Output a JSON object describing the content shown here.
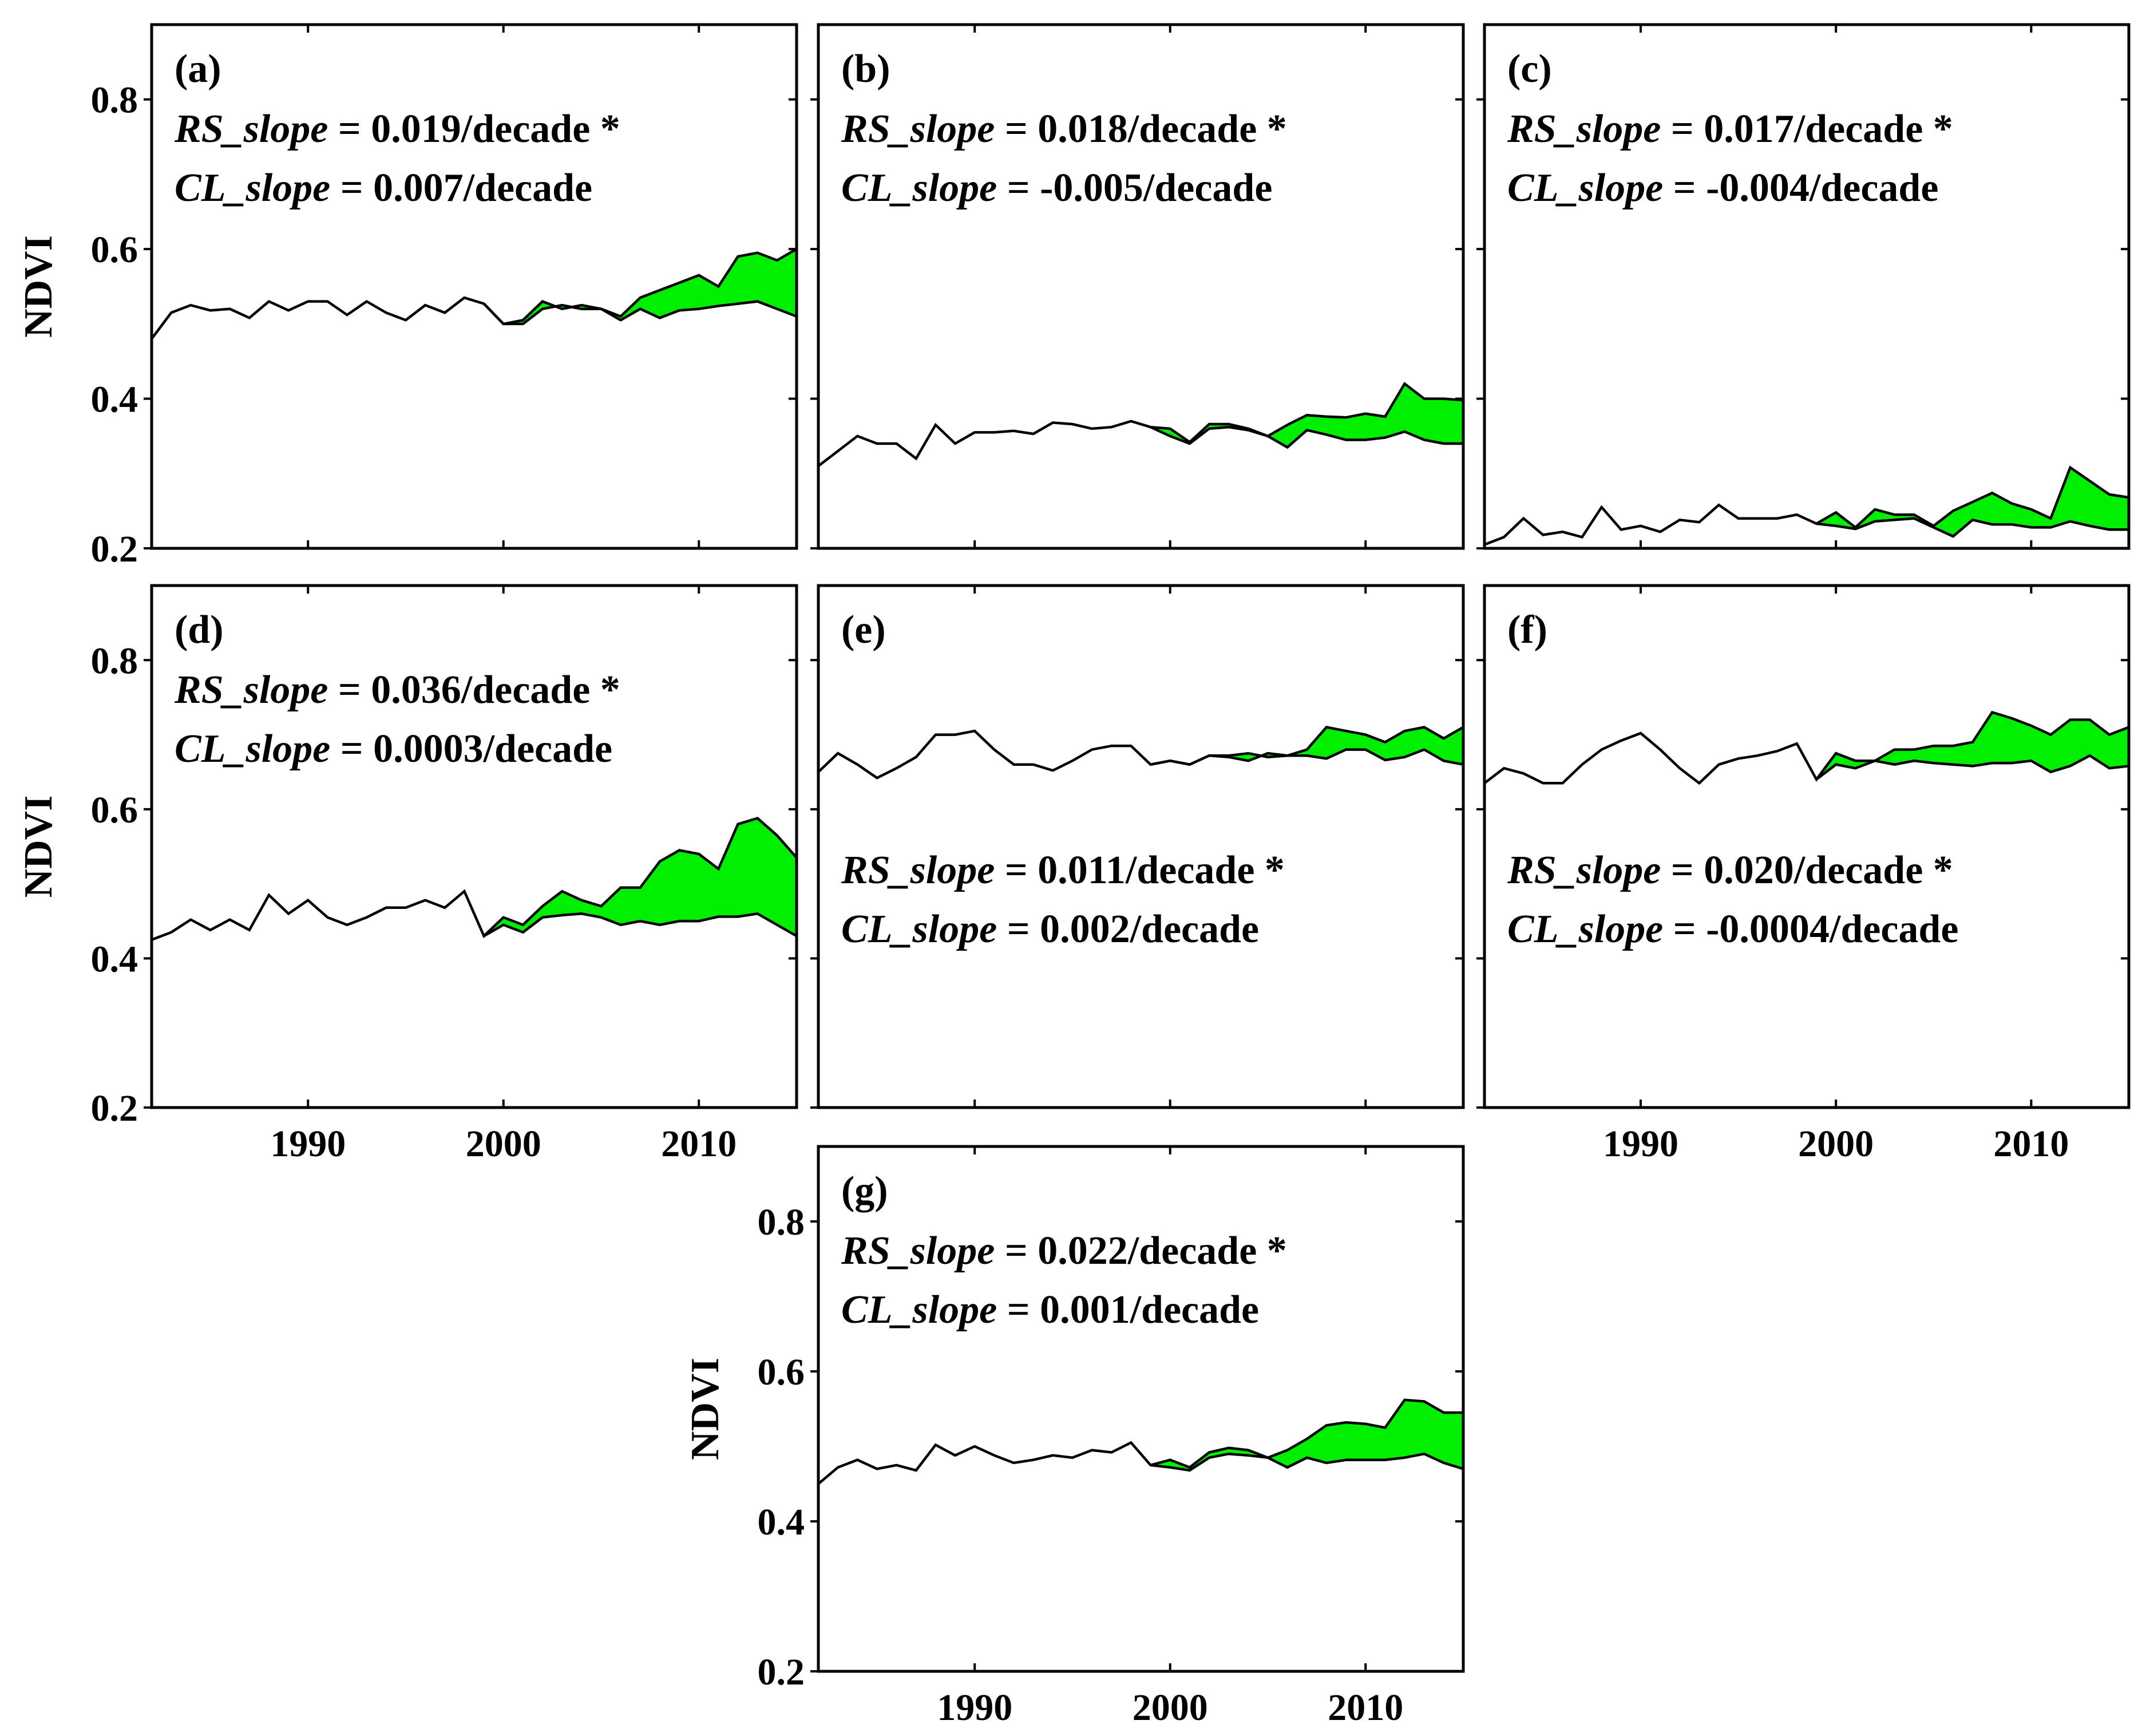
{
  "figure": {
    "accent_fill": "#00ee00",
    "line_color": "#000000"
  },
  "chart_data": [
    {
      "id": "a",
      "type": "line",
      "label": "(a)",
      "rs_label": "RS_slope",
      "rs_value": "= 0.019/decade *",
      "cl_label": "CL_slope",
      "cl_value": "= 0.007/decade",
      "ylabel": "NDVI",
      "xlabel": "",
      "xlim": [
        1982,
        2015
      ],
      "ylim": [
        0.2,
        0.9
      ],
      "yticks": [
        0.2,
        0.4,
        0.6,
        0.8
      ],
      "ytick_labels": [
        "0.2",
        "0.4",
        "0.6",
        "0.8"
      ],
      "xticks": [
        1990,
        2000,
        2010
      ],
      "xtick_labels": [],
      "series": [
        {
          "name": "RS",
          "x": [
            1982,
            1983,
            1984,
            1985,
            1986,
            1987,
            1988,
            1989,
            1990,
            1991,
            1992,
            1993,
            1994,
            1995,
            1996,
            1997,
            1998,
            1999,
            2000,
            2001,
            2002,
            2003,
            2004,
            2005,
            2006,
            2007,
            2008,
            2009,
            2010,
            2011,
            2012,
            2013,
            2014,
            2015
          ],
          "values": [
            0.48,
            0.515,
            0.525,
            0.518,
            0.52,
            0.508,
            0.53,
            0.518,
            0.53,
            0.53,
            0.512,
            0.53,
            0.515,
            0.505,
            0.525,
            0.515,
            0.535,
            0.527,
            0.5,
            0.505,
            0.53,
            0.52,
            0.525,
            0.52,
            0.51,
            0.535,
            0.545,
            0.555,
            0.565,
            0.55,
            0.59,
            0.595,
            0.585,
            0.6
          ]
        },
        {
          "name": "CL",
          "x": [
            1999,
            2000,
            2001,
            2002,
            2003,
            2004,
            2005,
            2006,
            2007,
            2008,
            2009,
            2010,
            2011,
            2012,
            2013,
            2014,
            2015
          ],
          "values": [
            0.527,
            0.5,
            0.5,
            0.52,
            0.525,
            0.52,
            0.52,
            0.505,
            0.52,
            0.508,
            0.518,
            0.52,
            0.524,
            0.527,
            0.53,
            0.52,
            0.51
          ]
        }
      ]
    },
    {
      "id": "b",
      "type": "line",
      "label": "(b)",
      "rs_label": "RS_slope",
      "rs_value": "= 0.018/decade *",
      "cl_label": "CL_slope",
      "cl_value": "= -0.005/decade",
      "ylabel": "",
      "xlabel": "",
      "xlim": [
        1982,
        2015
      ],
      "ylim": [
        0.2,
        0.9
      ],
      "yticks": [
        0.2,
        0.4,
        0.6,
        0.8
      ],
      "ytick_labels": [],
      "xticks": [
        1990,
        2000,
        2010
      ],
      "xtick_labels": [],
      "series": [
        {
          "name": "RS",
          "x": [
            1982,
            1983,
            1984,
            1985,
            1986,
            1987,
            1988,
            1989,
            1990,
            1991,
            1992,
            1993,
            1994,
            1995,
            1996,
            1997,
            1998,
            1999,
            2000,
            2001,
            2002,
            2003,
            2004,
            2005,
            2006,
            2007,
            2008,
            2009,
            2010,
            2011,
            2012,
            2013,
            2014,
            2015
          ],
          "values": [
            0.31,
            0.33,
            0.35,
            0.34,
            0.34,
            0.32,
            0.365,
            0.34,
            0.355,
            0.355,
            0.357,
            0.353,
            0.368,
            0.366,
            0.36,
            0.362,
            0.37,
            0.362,
            0.36,
            0.342,
            0.366,
            0.366,
            0.36,
            0.35,
            0.365,
            0.378,
            0.376,
            0.375,
            0.38,
            0.376,
            0.42,
            0.4,
            0.4,
            0.398
          ]
        },
        {
          "name": "CL",
          "x": [
            1999,
            2000,
            2001,
            2002,
            2003,
            2004,
            2005,
            2006,
            2007,
            2008,
            2009,
            2010,
            2011,
            2012,
            2013,
            2014,
            2015
          ],
          "values": [
            0.362,
            0.35,
            0.34,
            0.36,
            0.362,
            0.358,
            0.35,
            0.335,
            0.358,
            0.352,
            0.345,
            0.345,
            0.348,
            0.356,
            0.345,
            0.34,
            0.34
          ]
        }
      ]
    },
    {
      "id": "c",
      "type": "line",
      "label": "(c)",
      "rs_label": "RS_slope",
      "rs_value": "= 0.017/decade *",
      "cl_label": "CL_slope",
      "cl_value": "= -0.004/decade",
      "ylabel": "",
      "xlabel": "",
      "xlim": [
        1982,
        2015
      ],
      "ylim": [
        0.2,
        0.9
      ],
      "yticks": [
        0.2,
        0.4,
        0.6,
        0.8
      ],
      "ytick_labels": [],
      "xticks": [
        1990,
        2000,
        2010
      ],
      "xtick_labels": [],
      "series": [
        {
          "name": "RS",
          "x": [
            1982,
            1983,
            1984,
            1985,
            1986,
            1987,
            1988,
            1989,
            1990,
            1991,
            1992,
            1993,
            1994,
            1995,
            1996,
            1997,
            1998,
            1999,
            2000,
            2001,
            2002,
            2003,
            2004,
            2005,
            2006,
            2007,
            2008,
            2009,
            2010,
            2011,
            2012,
            2013,
            2014,
            2015
          ],
          "values": [
            0.205,
            0.215,
            0.24,
            0.218,
            0.222,
            0.215,
            0.255,
            0.225,
            0.23,
            0.222,
            0.238,
            0.235,
            0.258,
            0.24,
            0.24,
            0.24,
            0.245,
            0.233,
            0.248,
            0.228,
            0.252,
            0.245,
            0.245,
            0.23,
            0.25,
            0.262,
            0.274,
            0.26,
            0.252,
            0.24,
            0.308,
            0.29,
            0.272,
            0.268
          ]
        },
        {
          "name": "CL",
          "x": [
            1999,
            2000,
            2001,
            2002,
            2003,
            2004,
            2005,
            2006,
            2007,
            2008,
            2009,
            2010,
            2011,
            2012,
            2013,
            2014,
            2015
          ],
          "values": [
            0.233,
            0.23,
            0.226,
            0.236,
            0.238,
            0.24,
            0.228,
            0.216,
            0.238,
            0.232,
            0.232,
            0.228,
            0.228,
            0.236,
            0.23,
            0.225,
            0.225
          ]
        }
      ]
    },
    {
      "id": "d",
      "type": "line",
      "label": "(d)",
      "rs_label": "RS_slope",
      "rs_value": "= 0.036/decade *",
      "cl_label": "CL_slope",
      "cl_value": "= 0.0003/decade",
      "ylabel": "NDVI",
      "xlabel": "",
      "xlim": [
        1982,
        2015
      ],
      "ylim": [
        0.2,
        0.9
      ],
      "yticks": [
        0.2,
        0.4,
        0.6,
        0.8
      ],
      "ytick_labels": [
        "0.2",
        "0.4",
        "0.6",
        "0.8"
      ],
      "xticks": [
        1990,
        2000,
        2010
      ],
      "xtick_labels": [
        "1990",
        "2000",
        "2010"
      ],
      "series": [
        {
          "name": "RS",
          "x": [
            1982,
            1983,
            1984,
            1985,
            1986,
            1987,
            1988,
            1989,
            1990,
            1991,
            1992,
            1993,
            1994,
            1995,
            1996,
            1997,
            1998,
            1999,
            2000,
            2001,
            2002,
            2003,
            2004,
            2005,
            2006,
            2007,
            2008,
            2009,
            2010,
            2011,
            2012,
            2013,
            2014,
            2015
          ],
          "values": [
            0.425,
            0.435,
            0.452,
            0.438,
            0.452,
            0.438,
            0.485,
            0.46,
            0.478,
            0.455,
            0.445,
            0.455,
            0.468,
            0.468,
            0.478,
            0.468,
            0.49,
            0.43,
            0.455,
            0.445,
            0.47,
            0.49,
            0.478,
            0.47,
            0.495,
            0.495,
            0.53,
            0.545,
            0.54,
            0.52,
            0.58,
            0.588,
            0.565,
            0.535
          ]
        },
        {
          "name": "CL",
          "x": [
            1999,
            2000,
            2001,
            2002,
            2003,
            2004,
            2005,
            2006,
            2007,
            2008,
            2009,
            2010,
            2011,
            2012,
            2013,
            2014,
            2015
          ],
          "values": [
            0.43,
            0.445,
            0.435,
            0.455,
            0.458,
            0.46,
            0.455,
            0.445,
            0.45,
            0.445,
            0.45,
            0.45,
            0.456,
            0.456,
            0.46,
            0.445,
            0.43
          ]
        }
      ]
    },
    {
      "id": "e",
      "type": "line",
      "label": "(e)",
      "rs_label": "RS_slope",
      "rs_value": "= 0.011/decade *",
      "cl_label": "CL_slope",
      "cl_value": "= 0.002/decade",
      "ylabel": "",
      "xlabel": "",
      "xlim": [
        1982,
        2015
      ],
      "ylim": [
        0.2,
        0.9
      ],
      "yticks": [
        0.2,
        0.4,
        0.6,
        0.8
      ],
      "ytick_labels": [],
      "xticks": [
        1990,
        2000,
        2010
      ],
      "xtick_labels": [],
      "series": [
        {
          "name": "RS",
          "x": [
            1982,
            1983,
            1984,
            1985,
            1986,
            1987,
            1988,
            1989,
            1990,
            1991,
            1992,
            1993,
            1994,
            1995,
            1996,
            1997,
            1998,
            1999,
            2000,
            2001,
            2002,
            2003,
            2004,
            2005,
            2006,
            2007,
            2008,
            2009,
            2010,
            2011,
            2012,
            2013,
            2014,
            2015
          ],
          "values": [
            0.65,
            0.675,
            0.66,
            0.642,
            0.655,
            0.67,
            0.7,
            0.7,
            0.705,
            0.68,
            0.66,
            0.66,
            0.652,
            0.665,
            0.68,
            0.685,
            0.685,
            0.66,
            0.665,
            0.66,
            0.672,
            0.672,
            0.675,
            0.67,
            0.672,
            0.68,
            0.71,
            0.705,
            0.7,
            0.69,
            0.705,
            0.71,
            0.695,
            0.71
          ]
        },
        {
          "name": "CL",
          "x": [
            1999,
            2000,
            2001,
            2002,
            2003,
            2004,
            2005,
            2006,
            2007,
            2008,
            2009,
            2010,
            2011,
            2012,
            2013,
            2014,
            2015
          ],
          "values": [
            0.66,
            0.665,
            0.66,
            0.672,
            0.67,
            0.665,
            0.675,
            0.672,
            0.672,
            0.668,
            0.68,
            0.68,
            0.666,
            0.67,
            0.68,
            0.665,
            0.66
          ]
        }
      ]
    },
    {
      "id": "f",
      "type": "line",
      "label": "(f)",
      "rs_label": "RS_slope",
      "rs_value": "= 0.020/decade *",
      "cl_label": "CL_slope",
      "cl_value": "= -0.0004/decade",
      "ylabel": "",
      "xlabel": "",
      "xlim": [
        1982,
        2015
      ],
      "ylim": [
        0.2,
        0.9
      ],
      "yticks": [
        0.2,
        0.4,
        0.6,
        0.8
      ],
      "ytick_labels": [],
      "xticks": [
        1990,
        2000,
        2010
      ],
      "xtick_labels": [
        "1990",
        "2000",
        "2010"
      ],
      "series": [
        {
          "name": "RS",
          "x": [
            1982,
            1983,
            1984,
            1985,
            1986,
            1987,
            1988,
            1989,
            1990,
            1991,
            1992,
            1993,
            1994,
            1995,
            1996,
            1997,
            1998,
            1999,
            2000,
            2001,
            2002,
            2003,
            2004,
            2005,
            2006,
            2007,
            2008,
            2009,
            2010,
            2011,
            2012,
            2013,
            2014,
            2015
          ],
          "values": [
            0.635,
            0.655,
            0.648,
            0.635,
            0.635,
            0.66,
            0.68,
            0.692,
            0.702,
            0.68,
            0.655,
            0.635,
            0.66,
            0.668,
            0.672,
            0.678,
            0.688,
            0.64,
            0.675,
            0.665,
            0.665,
            0.68,
            0.68,
            0.685,
            0.685,
            0.69,
            0.73,
            0.722,
            0.712,
            0.7,
            0.72,
            0.72,
            0.7,
            0.71
          ]
        },
        {
          "name": "CL",
          "x": [
            1999,
            2000,
            2001,
            2002,
            2003,
            2004,
            2005,
            2006,
            2007,
            2008,
            2009,
            2010,
            2011,
            2012,
            2013,
            2014,
            2015
          ],
          "values": [
            0.64,
            0.66,
            0.655,
            0.665,
            0.66,
            0.665,
            0.662,
            0.66,
            0.658,
            0.662,
            0.662,
            0.665,
            0.65,
            0.658,
            0.672,
            0.655,
            0.658
          ]
        }
      ]
    },
    {
      "id": "g",
      "type": "line",
      "label": "(g)",
      "rs_label": "RS_slope",
      "rs_value": "= 0.022/decade *",
      "cl_label": "CL_slope",
      "cl_value": "= 0.001/decade",
      "ylabel": "NDVI",
      "xlabel": "",
      "xlim": [
        1982,
        2015
      ],
      "ylim": [
        0.2,
        0.9
      ],
      "yticks": [
        0.2,
        0.4,
        0.6,
        0.8
      ],
      "ytick_labels": [
        "0.2",
        "0.4",
        "0.6",
        "0.8"
      ],
      "xticks": [
        1990,
        2000,
        2010
      ],
      "xtick_labels": [
        "1990",
        "2000",
        "2010"
      ],
      "series": [
        {
          "name": "RS",
          "x": [
            1982,
            1983,
            1984,
            1985,
            1986,
            1987,
            1988,
            1989,
            1990,
            1991,
            1992,
            1993,
            1994,
            1995,
            1996,
            1997,
            1998,
            1999,
            2000,
            2001,
            2002,
            2003,
            2004,
            2005,
            2006,
            2007,
            2008,
            2009,
            2010,
            2011,
            2012,
            2013,
            2014,
            2015
          ],
          "values": [
            0.45,
            0.472,
            0.482,
            0.47,
            0.475,
            0.468,
            0.502,
            0.488,
            0.5,
            0.488,
            0.478,
            0.482,
            0.488,
            0.485,
            0.495,
            0.492,
            0.505,
            0.475,
            0.482,
            0.472,
            0.492,
            0.498,
            0.495,
            0.485,
            0.495,
            0.51,
            0.528,
            0.532,
            0.53,
            0.525,
            0.562,
            0.56,
            0.545,
            0.545
          ]
        },
        {
          "name": "CL",
          "x": [
            1999,
            2000,
            2001,
            2002,
            2003,
            2004,
            2005,
            2006,
            2007,
            2008,
            2009,
            2010,
            2011,
            2012,
            2013,
            2014,
            2015
          ],
          "values": [
            0.475,
            0.472,
            0.468,
            0.485,
            0.49,
            0.488,
            0.485,
            0.472,
            0.485,
            0.478,
            0.482,
            0.482,
            0.482,
            0.485,
            0.49,
            0.478,
            0.47
          ]
        }
      ]
    }
  ]
}
